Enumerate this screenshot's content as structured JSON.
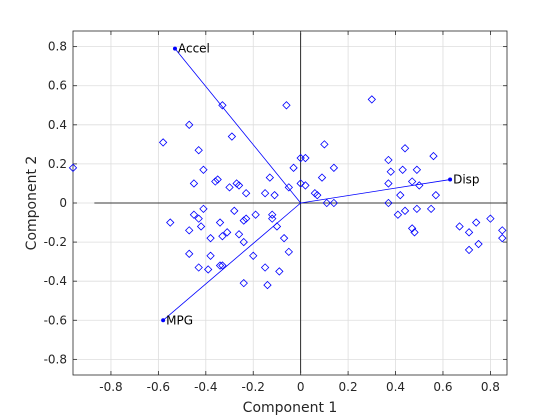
{
  "chart_data": {
    "type": "scatter",
    "title": "",
    "xlabel": "Component 1",
    "ylabel": "Component 2",
    "xlim": [
      -0.96,
      0.87
    ],
    "ylim": [
      -0.88,
      0.88
    ],
    "grid": true,
    "legend": "none",
    "xticks": [
      -0.8,
      -0.6,
      -0.4,
      -0.2,
      0,
      0.2,
      0.4,
      0.6,
      0.8
    ],
    "yticks": [
      -0.8,
      -0.6,
      -0.4,
      -0.2,
      0,
      0.2,
      0.4,
      0.6,
      0.8
    ],
    "tick_labels": [
      "-0.8",
      "-0.6",
      "-0.4",
      "-0.2",
      "0",
      "0.2",
      "0.4",
      "0.6",
      "0.8"
    ],
    "colors": {
      "marker": "#0000ff",
      "vector": "#0000ff",
      "axis": "#000000",
      "grid": "#dddddd"
    },
    "vectors": [
      {
        "name": "Accel",
        "x": -0.53,
        "y": 0.79
      },
      {
        "name": "Disp",
        "x": 0.63,
        "y": 0.12
      },
      {
        "name": "MPG",
        "x": -0.58,
        "y": -0.6
      }
    ],
    "points": [
      [
        -0.96,
        0.18
      ],
      [
        -0.58,
        0.31
      ],
      [
        -0.47,
        0.4
      ],
      [
        -0.33,
        0.5
      ],
      [
        -0.06,
        0.5
      ],
      [
        -0.29,
        0.34
      ],
      [
        -0.43,
        0.27
      ],
      [
        -0.41,
        0.17
      ],
      [
        -0.35,
        0.12
      ],
      [
        -0.36,
        0.11
      ],
      [
        -0.45,
        0.1
      ],
      [
        -0.3,
        0.08
      ],
      [
        -0.27,
        0.1
      ],
      [
        -0.26,
        0.09
      ],
      [
        -0.23,
        0.05
      ],
      [
        -0.15,
        0.05
      ],
      [
        -0.11,
        0.04
      ],
      [
        -0.13,
        0.13
      ],
      [
        -0.05,
        0.08
      ],
      [
        -0.03,
        0.18
      ],
      [
        0.0,
        0.23
      ],
      [
        0.02,
        0.23
      ],
      [
        0.1,
        0.3
      ],
      [
        0.14,
        0.18
      ],
      [
        0.09,
        0.13
      ],
      [
        0.0,
        0.1
      ],
      [
        0.02,
        0.09
      ],
      [
        0.06,
        0.05
      ],
      [
        0.07,
        0.04
      ],
      [
        0.11,
        0.0
      ],
      [
        0.14,
        0.0
      ],
      [
        0.3,
        0.53
      ],
      [
        -0.55,
        -0.1
      ],
      [
        -0.47,
        -0.14
      ],
      [
        -0.45,
        -0.06
      ],
      [
        -0.43,
        -0.08
      ],
      [
        -0.42,
        -0.12
      ],
      [
        -0.41,
        -0.03
      ],
      [
        -0.34,
        -0.1
      ],
      [
        -0.28,
        -0.04
      ],
      [
        -0.24,
        -0.09
      ],
      [
        -0.23,
        -0.08
      ],
      [
        -0.26,
        -0.16
      ],
      [
        -0.24,
        -0.2
      ],
      [
        -0.19,
        -0.06
      ],
      [
        -0.12,
        -0.06
      ],
      [
        -0.12,
        -0.08
      ],
      [
        -0.1,
        -0.12
      ],
      [
        -0.07,
        -0.18
      ],
      [
        -0.2,
        -0.27
      ],
      [
        -0.15,
        -0.33
      ],
      [
        -0.14,
        -0.42
      ],
      [
        -0.24,
        -0.41
      ],
      [
        -0.05,
        -0.25
      ],
      [
        -0.09,
        -0.35
      ],
      [
        -0.33,
        -0.32
      ],
      [
        -0.34,
        -0.32
      ],
      [
        -0.39,
        -0.34
      ],
      [
        -0.43,
        -0.33
      ],
      [
        -0.47,
        -0.26
      ],
      [
        -0.38,
        -0.27
      ],
      [
        -0.38,
        -0.18
      ],
      [
        -0.33,
        -0.17
      ],
      [
        -0.31,
        -0.15
      ],
      [
        0.37,
        0.22
      ],
      [
        0.44,
        0.28
      ],
      [
        0.38,
        0.16
      ],
      [
        0.43,
        0.17
      ],
      [
        0.49,
        0.17
      ],
      [
        0.56,
        0.24
      ],
      [
        0.37,
        0.1
      ],
      [
        0.42,
        0.04
      ],
      [
        0.47,
        0.11
      ],
      [
        0.5,
        0.09
      ],
      [
        0.57,
        0.04
      ],
      [
        0.37,
        0.0
      ],
      [
        0.41,
        -0.06
      ],
      [
        0.44,
        -0.04
      ],
      [
        0.49,
        -0.03
      ],
      [
        0.55,
        -0.03
      ],
      [
        0.47,
        -0.13
      ],
      [
        0.48,
        -0.15
      ],
      [
        0.67,
        -0.12
      ],
      [
        0.71,
        -0.15
      ],
      [
        0.74,
        -0.1
      ],
      [
        0.71,
        -0.24
      ],
      [
        0.75,
        -0.21
      ],
      [
        0.8,
        -0.08
      ],
      [
        0.85,
        -0.14
      ],
      [
        0.85,
        -0.18
      ]
    ]
  }
}
